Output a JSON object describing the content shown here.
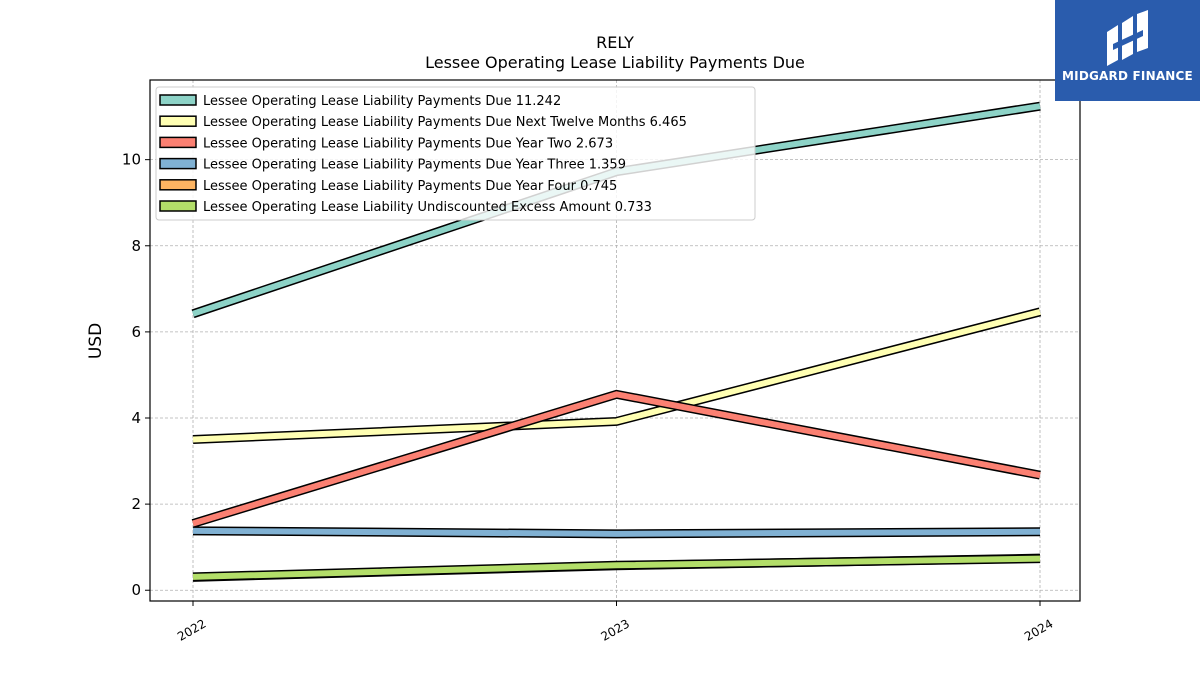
{
  "brand": {
    "name": "MIDGARD FINANCE",
    "color": "#2a5cad"
  },
  "chart_data": {
    "type": "line",
    "title": "RELY",
    "subtitle": "Lessee Operating Lease Liability Payments Due",
    "xlabel": "",
    "ylabel": "USD",
    "x": [
      "2022",
      "2023",
      "2024"
    ],
    "ylim": [
      -0.25,
      11.85
    ],
    "yticks": [
      0,
      2,
      4,
      6,
      8,
      10
    ],
    "grid": true,
    "legend_position": "top-left",
    "series": [
      {
        "name": "Lessee Operating Lease Liability Payments Due",
        "legend_label": "Lessee Operating Lease Liability Payments Due  11.242",
        "values": [
          6.42,
          9.72,
          11.242
        ],
        "color": "#8dd3c7"
      },
      {
        "name": "Lessee Operating Lease Liability Payments Due Next Twelve Months",
        "legend_label": "Lessee Operating Lease Liability Payments Due Next Twelve Months  6.465",
        "values": [
          3.5,
          3.92,
          6.465
        ],
        "color": "#ffffb3"
      },
      {
        "name": "Lessee Operating Lease Liability Payments Due Year Two",
        "legend_label": "Lessee Operating Lease Liability Payments Due Year Two  2.673",
        "values": [
          1.55,
          4.55,
          2.673
        ],
        "color": "#fb8072"
      },
      {
        "name": "Lessee Operating Lease Liability Payments Due Year Three",
        "legend_label": "Lessee Operating Lease Liability Payments Due Year Three  1.359",
        "values": [
          1.38,
          1.31,
          1.359
        ],
        "color": "#80b1d3"
      },
      {
        "name": "Lessee Operating Lease Liability Payments Due Year Four",
        "legend_label": "Lessee Operating Lease Liability Payments Due Year Four  0.745",
        "values": [
          0.3,
          0.57,
          0.745
        ],
        "color": "#fdb462"
      },
      {
        "name": "Lessee Operating Lease Liability Undiscounted Excess Amount",
        "legend_label": "Lessee Operating Lease Liability Undiscounted Excess Amount  0.733",
        "values": [
          0.31,
          0.58,
          0.733
        ],
        "color": "#b3de69"
      }
    ]
  }
}
